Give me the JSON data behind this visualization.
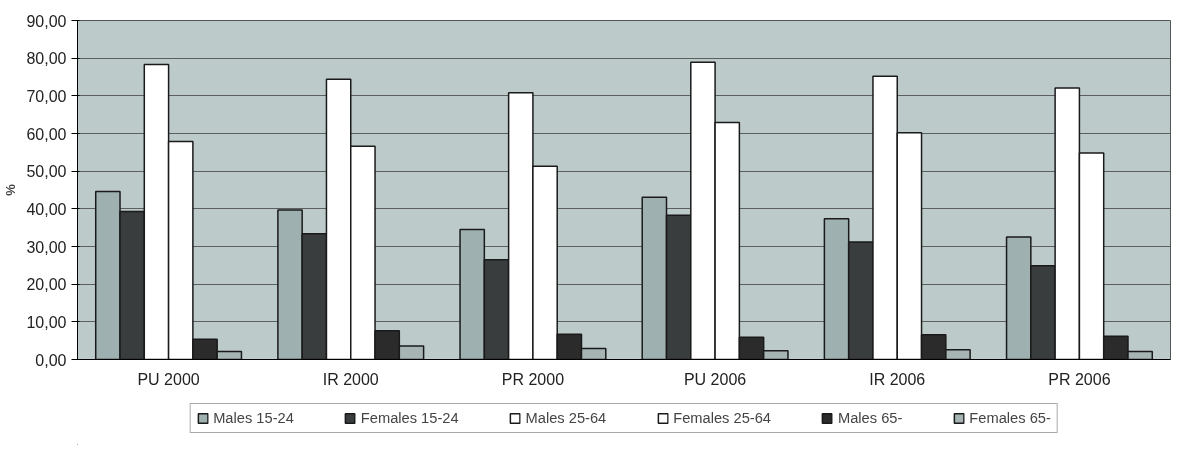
{
  "chart_data": {
    "type": "bar",
    "ylabel": "%",
    "categories": [
      "PU 2000",
      "IR 2000",
      "PR 2000",
      "PU 2006",
      "IR 2006",
      "PR 2006"
    ],
    "series": [
      {
        "name": "Males 15-24",
        "color": "#9fb0b0",
        "values": [
          44.6,
          39.7,
          34.5,
          43.1,
          37.4,
          32.5
        ]
      },
      {
        "name": "Females 15-24",
        "color": "#3a3d3d",
        "values": [
          39.3,
          33.4,
          26.5,
          38.3,
          31.2,
          24.9
        ]
      },
      {
        "name": "Males 25-64",
        "color": "#ffffff",
        "values": [
          78.3,
          74.4,
          70.8,
          78.9,
          75.2,
          72.1
        ]
      },
      {
        "name": "Females 25-64",
        "color": "#ffffff",
        "values": [
          57.9,
          56.6,
          51.3,
          62.9,
          60.2,
          54.8
        ]
      },
      {
        "name": "Males 65-",
        "color": "#2b2b2b",
        "values": [
          5.4,
          7.6,
          6.7,
          5.9,
          6.6,
          6.2
        ]
      },
      {
        "name": "Females 65-",
        "color": "#a6b4b4",
        "values": [
          2.1,
          3.6,
          2.9,
          2.3,
          2.6,
          2.1
        ]
      }
    ],
    "ylim": [
      0,
      90
    ],
    "yticks": [
      {
        "value": 0,
        "label": "0,00"
      },
      {
        "value": 10,
        "label": "10,00"
      },
      {
        "value": 20,
        "label": "20,00"
      },
      {
        "value": 30,
        "label": "30,00"
      },
      {
        "value": 40,
        "label": "40,00"
      },
      {
        "value": 50,
        "label": "50,00"
      },
      {
        "value": 60,
        "label": "60,00"
      },
      {
        "value": 70,
        "label": "70,00"
      },
      {
        "value": 80,
        "label": "80,00"
      },
      {
        "value": 90,
        "label": "90,00"
      }
    ],
    "grid": "y",
    "legend": "bottom"
  }
}
